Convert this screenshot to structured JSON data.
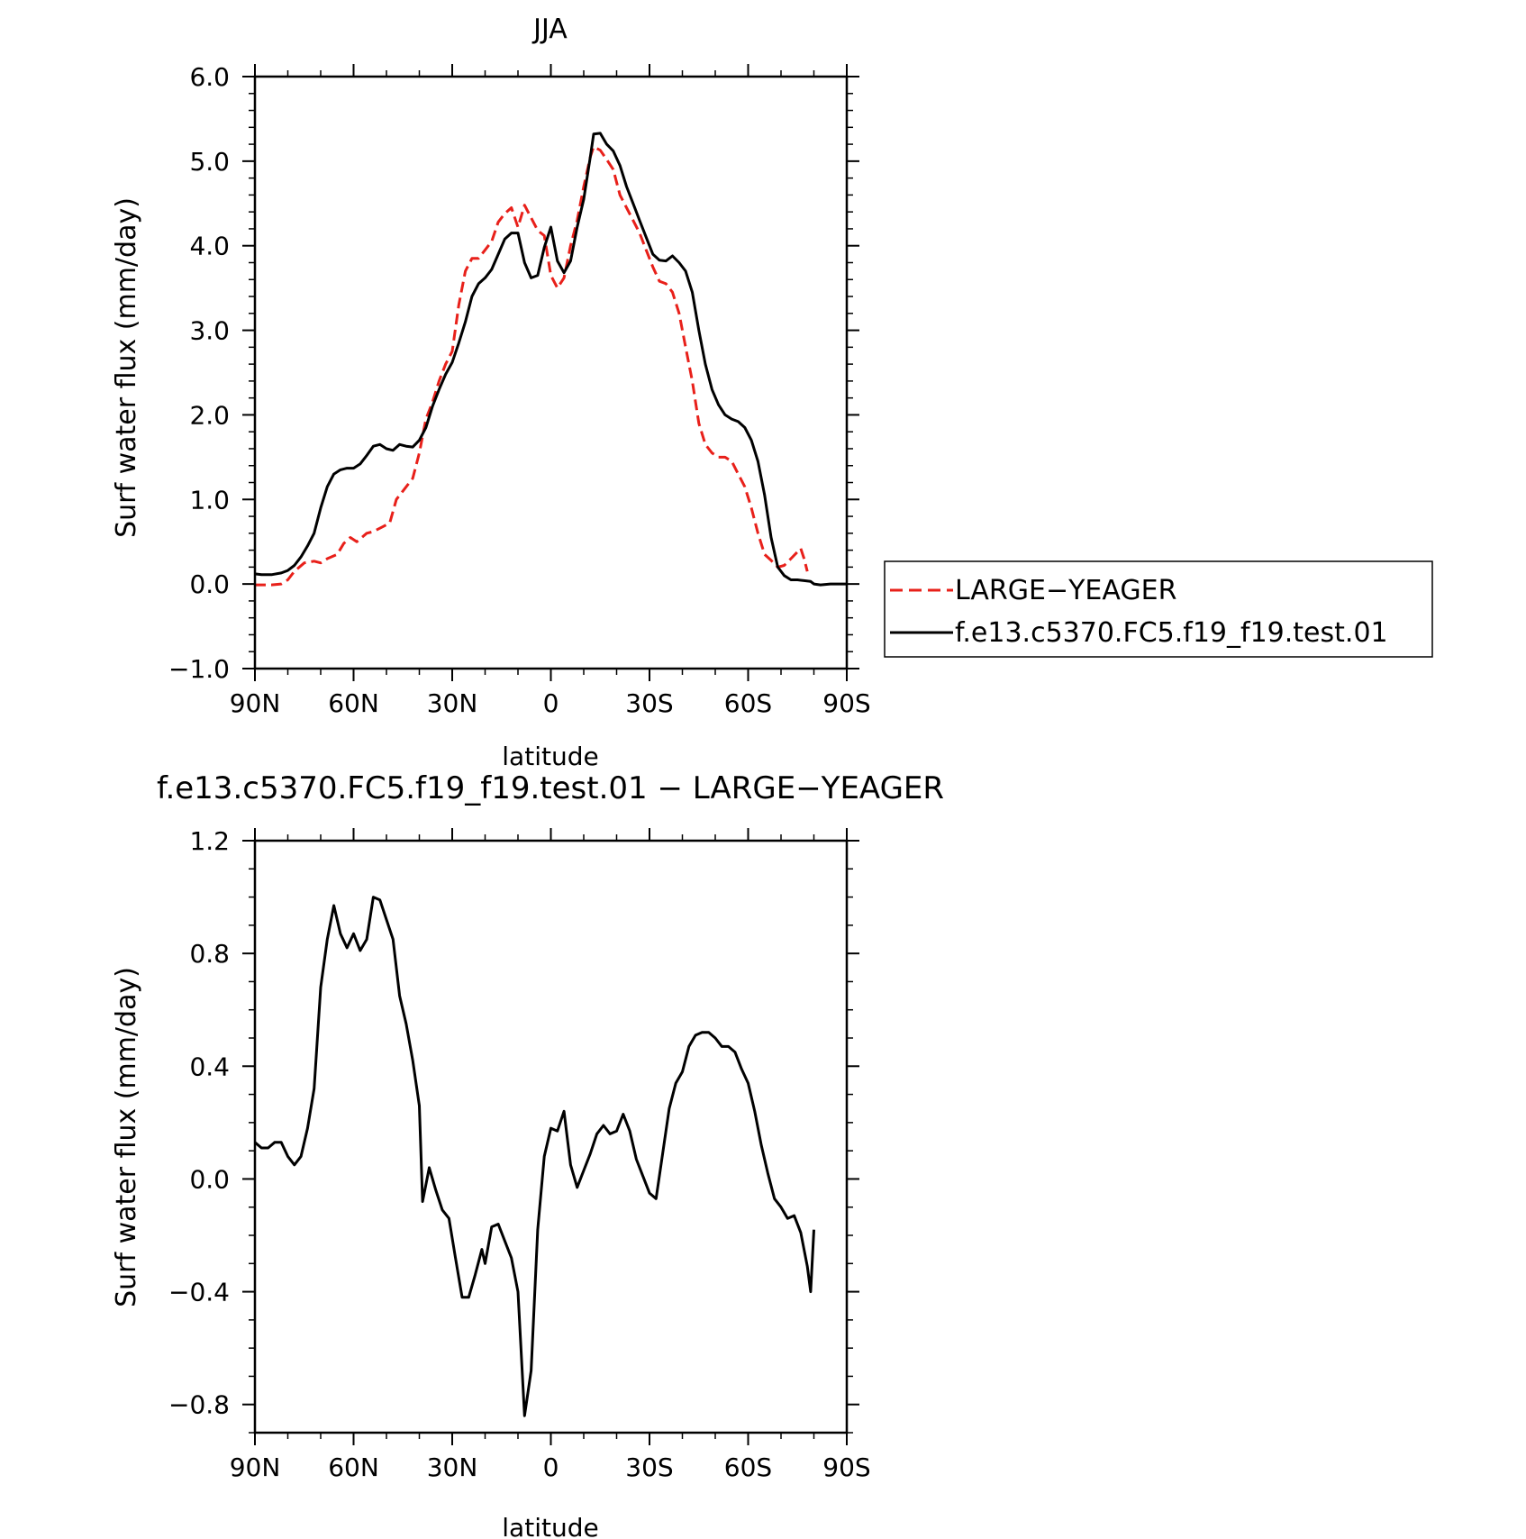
{
  "colors": {
    "model": "#000000",
    "obs": "#e8201a",
    "background": "#ffffff"
  },
  "chart_data": [
    {
      "type": "line",
      "title": "JJA",
      "xlabel": "latitude",
      "ylabel": "Surf water flux (mm/day)",
      "x_ticks": [
        90,
        60,
        30,
        0,
        -30,
        -60,
        -90
      ],
      "x_tick_labels": [
        "90N",
        "60N",
        "30N",
        "0",
        "30S",
        "60S",
        "90S"
      ],
      "xlim": [
        90,
        -90
      ],
      "ylim": [
        -1.0,
        6.0
      ],
      "y_ticks": [
        -1.0,
        0.0,
        1.0,
        2.0,
        3.0,
        4.0,
        5.0,
        6.0
      ],
      "y_tick_labels": [
        "−1.0",
        "0.0",
        "1.0",
        "2.0",
        "3.0",
        "4.0",
        "5.0",
        "6.0"
      ],
      "legend": {
        "position": "right",
        "entries": [
          "LARGE−YEAGER",
          "f.e13.c5370.FC5.f19_f19.test.01"
        ]
      },
      "series": [
        {
          "name": "LARGE−YEAGER",
          "style": "dashed",
          "color": "#e8201a",
          "points": [
            [
              90,
              -0.01
            ],
            [
              85,
              -0.01
            ],
            [
              82,
              0.0
            ],
            [
              80,
              0.05
            ],
            [
              78,
              0.15
            ],
            [
              75,
              0.25
            ],
            [
              72,
              0.27
            ],
            [
              70,
              0.25
            ],
            [
              68,
              0.3
            ],
            [
              65,
              0.35
            ],
            [
              63,
              0.48
            ],
            [
              61,
              0.55
            ],
            [
              59,
              0.5
            ],
            [
              56,
              0.6
            ],
            [
              54,
              0.62
            ],
            [
              51,
              0.68
            ],
            [
              49,
              0.72
            ],
            [
              47,
              1.0
            ],
            [
              45,
              1.1
            ],
            [
              42,
              1.25
            ],
            [
              40,
              1.55
            ],
            [
              38,
              1.95
            ],
            [
              36,
              2.15
            ],
            [
              34,
              2.4
            ],
            [
              32,
              2.6
            ],
            [
              30,
              2.75
            ],
            [
              28,
              3.3
            ],
            [
              26,
              3.7
            ],
            [
              24,
              3.85
            ],
            [
              22,
              3.85
            ],
            [
              20,
              3.95
            ],
            [
              18,
              4.05
            ],
            [
              16,
              4.28
            ],
            [
              14,
              4.38
            ],
            [
              12,
              4.45
            ],
            [
              10,
              4.22
            ],
            [
              8,
              4.48
            ],
            [
              6,
              4.33
            ],
            [
              4,
              4.18
            ],
            [
              2,
              4.12
            ],
            [
              0,
              3.65
            ],
            [
              -2,
              3.5
            ],
            [
              -4,
              3.62
            ],
            [
              -6,
              4.0
            ],
            [
              -8,
              4.3
            ],
            [
              -10,
              4.7
            ],
            [
              -12,
              5.05
            ],
            [
              -13,
              5.17
            ],
            [
              -15,
              5.13
            ],
            [
              -17,
              5.02
            ],
            [
              -19,
              4.9
            ],
            [
              -21,
              4.6
            ],
            [
              -23,
              4.45
            ],
            [
              -25,
              4.3
            ],
            [
              -27,
              4.15
            ],
            [
              -29,
              3.95
            ],
            [
              -31,
              3.75
            ],
            [
              -33,
              3.58
            ],
            [
              -35,
              3.55
            ],
            [
              -37,
              3.45
            ],
            [
              -39,
              3.2
            ],
            [
              -41,
              2.8
            ],
            [
              -43,
              2.4
            ],
            [
              -45,
              1.9
            ],
            [
              -47,
              1.65
            ],
            [
              -49,
              1.55
            ],
            [
              -51,
              1.5
            ],
            [
              -53,
              1.5
            ],
            [
              -55,
              1.45
            ],
            [
              -57,
              1.3
            ],
            [
              -59,
              1.15
            ],
            [
              -61,
              0.9
            ],
            [
              -63,
              0.6
            ],
            [
              -65,
              0.35
            ],
            [
              -67,
              0.28
            ],
            [
              -69,
              0.2
            ],
            [
              -71,
              0.22
            ],
            [
              -73,
              0.3
            ],
            [
              -75,
              0.38
            ],
            [
              -76,
              0.42
            ],
            [
              -77,
              0.3
            ],
            [
              -78,
              0.15
            ]
          ]
        },
        {
          "name": "f.e13.c5370.FC5.f19_f19.test.01",
          "style": "solid",
          "color": "#000000",
          "points": [
            [
              90,
              0.12
            ],
            [
              88,
              0.11
            ],
            [
              85,
              0.11
            ],
            [
              82,
              0.13
            ],
            [
              80,
              0.16
            ],
            [
              78,
              0.22
            ],
            [
              76,
              0.32
            ],
            [
              74,
              0.45
            ],
            [
              72,
              0.6
            ],
            [
              70,
              0.9
            ],
            [
              68,
              1.15
            ],
            [
              66,
              1.3
            ],
            [
              64,
              1.35
            ],
            [
              62,
              1.37
            ],
            [
              60,
              1.37
            ],
            [
              58,
              1.42
            ],
            [
              56,
              1.52
            ],
            [
              54,
              1.63
            ],
            [
              52,
              1.65
            ],
            [
              50,
              1.6
            ],
            [
              48,
              1.58
            ],
            [
              46,
              1.65
            ],
            [
              44,
              1.63
            ],
            [
              42,
              1.62
            ],
            [
              40,
              1.7
            ],
            [
              38,
              1.85
            ],
            [
              36,
              2.1
            ],
            [
              34,
              2.3
            ],
            [
              32,
              2.48
            ],
            [
              30,
              2.62
            ],
            [
              28,
              2.85
            ],
            [
              26,
              3.1
            ],
            [
              24,
              3.4
            ],
            [
              22,
              3.55
            ],
            [
              20,
              3.62
            ],
            [
              18,
              3.72
            ],
            [
              16,
              3.9
            ],
            [
              14,
              4.08
            ],
            [
              12,
              4.15
            ],
            [
              10,
              4.15
            ],
            [
              8,
              3.8
            ],
            [
              6,
              3.62
            ],
            [
              4,
              3.65
            ],
            [
              2,
              3.98
            ],
            [
              0,
              4.22
            ],
            [
              -2,
              3.82
            ],
            [
              -4,
              3.68
            ],
            [
              -6,
              3.82
            ],
            [
              -8,
              4.22
            ],
            [
              -10,
              4.55
            ],
            [
              -12,
              5.05
            ],
            [
              -13,
              5.32
            ],
            [
              -15,
              5.33
            ],
            [
              -17,
              5.2
            ],
            [
              -19,
              5.12
            ],
            [
              -21,
              4.95
            ],
            [
              -23,
              4.7
            ],
            [
              -25,
              4.5
            ],
            [
              -27,
              4.3
            ],
            [
              -29,
              4.1
            ],
            [
              -31,
              3.9
            ],
            [
              -33,
              3.83
            ],
            [
              -35,
              3.82
            ],
            [
              -37,
              3.88
            ],
            [
              -39,
              3.8
            ],
            [
              -41,
              3.7
            ],
            [
              -43,
              3.45
            ],
            [
              -45,
              3.0
            ],
            [
              -47,
              2.6
            ],
            [
              -49,
              2.3
            ],
            [
              -51,
              2.12
            ],
            [
              -53,
              2.0
            ],
            [
              -55,
              1.95
            ],
            [
              -57,
              1.92
            ],
            [
              -59,
              1.85
            ],
            [
              -61,
              1.7
            ],
            [
              -63,
              1.45
            ],
            [
              -65,
              1.05
            ],
            [
              -67,
              0.55
            ],
            [
              -69,
              0.2
            ],
            [
              -71,
              0.1
            ],
            [
              -73,
              0.05
            ],
            [
              -75,
              0.05
            ],
            [
              -77,
              0.04
            ],
            [
              -79,
              0.03
            ],
            [
              -80,
              0.0
            ],
            [
              -82,
              -0.01
            ],
            [
              -85,
              0.0
            ],
            [
              -90,
              0.0
            ]
          ]
        }
      ]
    },
    {
      "type": "line",
      "title": "f.e13.c5370.FC5.f19_f19.test.01 − LARGE−YEAGER",
      "xlabel": "latitude",
      "ylabel": "Surf water flux (mm/day)",
      "x_ticks": [
        90,
        60,
        30,
        0,
        -30,
        -60,
        -90
      ],
      "x_tick_labels": [
        "90N",
        "60N",
        "30N",
        "0",
        "30S",
        "60S",
        "90S"
      ],
      "xlim": [
        90,
        -90
      ],
      "ylim": [
        -0.9,
        1.2
      ],
      "y_ticks": [
        -0.8,
        -0.4,
        0.0,
        0.4,
        0.8,
        1.2
      ],
      "y_tick_labels": [
        "−0.8",
        "−0.4",
        "0.0",
        "0.4",
        "0.8",
        "1.2"
      ],
      "series": [
        {
          "style": "solid",
          "color": "#000000",
          "points": [
            [
              90,
              0.13
            ],
            [
              88,
              0.11
            ],
            [
              86,
              0.11
            ],
            [
              84,
              0.13
            ],
            [
              82,
              0.13
            ],
            [
              80,
              0.08
            ],
            [
              78,
              0.05
            ],
            [
              76,
              0.08
            ],
            [
              74,
              0.18
            ],
            [
              72,
              0.32
            ],
            [
              70,
              0.68
            ],
            [
              68,
              0.85
            ],
            [
              66,
              0.97
            ],
            [
              64,
              0.87
            ],
            [
              62,
              0.82
            ],
            [
              60,
              0.87
            ],
            [
              58,
              0.81
            ],
            [
              56,
              0.85
            ],
            [
              54,
              1.0
            ],
            [
              52,
              0.99
            ],
            [
              50,
              0.92
            ],
            [
              48,
              0.85
            ],
            [
              46,
              0.65
            ],
            [
              44,
              0.55
            ],
            [
              42,
              0.42
            ],
            [
              40,
              0.26
            ],
            [
              39,
              -0.08
            ],
            [
              37,
              0.04
            ],
            [
              35,
              -0.04
            ],
            [
              33,
              -0.11
            ],
            [
              31,
              -0.14
            ],
            [
              29,
              -0.28
            ],
            [
              27,
              -0.42
            ],
            [
              25,
              -0.42
            ],
            [
              23,
              -0.34
            ],
            [
              21,
              -0.25
            ],
            [
              20,
              -0.3
            ],
            [
              18,
              -0.17
            ],
            [
              16,
              -0.16
            ],
            [
              14,
              -0.22
            ],
            [
              12,
              -0.28
            ],
            [
              10,
              -0.4
            ],
            [
              8,
              -0.84
            ],
            [
              6,
              -0.68
            ],
            [
              4,
              -0.18
            ],
            [
              2,
              0.08
            ],
            [
              0,
              0.18
            ],
            [
              -2,
              0.17
            ],
            [
              -4,
              0.24
            ],
            [
              -6,
              0.05
            ],
            [
              -8,
              -0.03
            ],
            [
              -10,
              0.03
            ],
            [
              -12,
              0.09
            ],
            [
              -14,
              0.16
            ],
            [
              -16,
              0.19
            ],
            [
              -18,
              0.16
            ],
            [
              -20,
              0.17
            ],
            [
              -22,
              0.23
            ],
            [
              -24,
              0.17
            ],
            [
              -26,
              0.07
            ],
            [
              -28,
              0.01
            ],
            [
              -30,
              -0.05
            ],
            [
              -32,
              -0.07
            ],
            [
              -34,
              0.09
            ],
            [
              -36,
              0.25
            ],
            [
              -38,
              0.34
            ],
            [
              -40,
              0.38
            ],
            [
              -42,
              0.47
            ],
            [
              -44,
              0.51
            ],
            [
              -46,
              0.52
            ],
            [
              -48,
              0.52
            ],
            [
              -50,
              0.5
            ],
            [
              -52,
              0.47
            ],
            [
              -54,
              0.47
            ],
            [
              -56,
              0.45
            ],
            [
              -58,
              0.39
            ],
            [
              -60,
              0.34
            ],
            [
              -62,
              0.24
            ],
            [
              -64,
              0.12
            ],
            [
              -66,
              0.02
            ],
            [
              -68,
              -0.07
            ],
            [
              -70,
              -0.1
            ],
            [
              -72,
              -0.14
            ],
            [
              -74,
              -0.13
            ],
            [
              -76,
              -0.19
            ],
            [
              -78,
              -0.31
            ],
            [
              -79,
              -0.4
            ],
            [
              -80,
              -0.18
            ]
          ]
        }
      ]
    }
  ]
}
